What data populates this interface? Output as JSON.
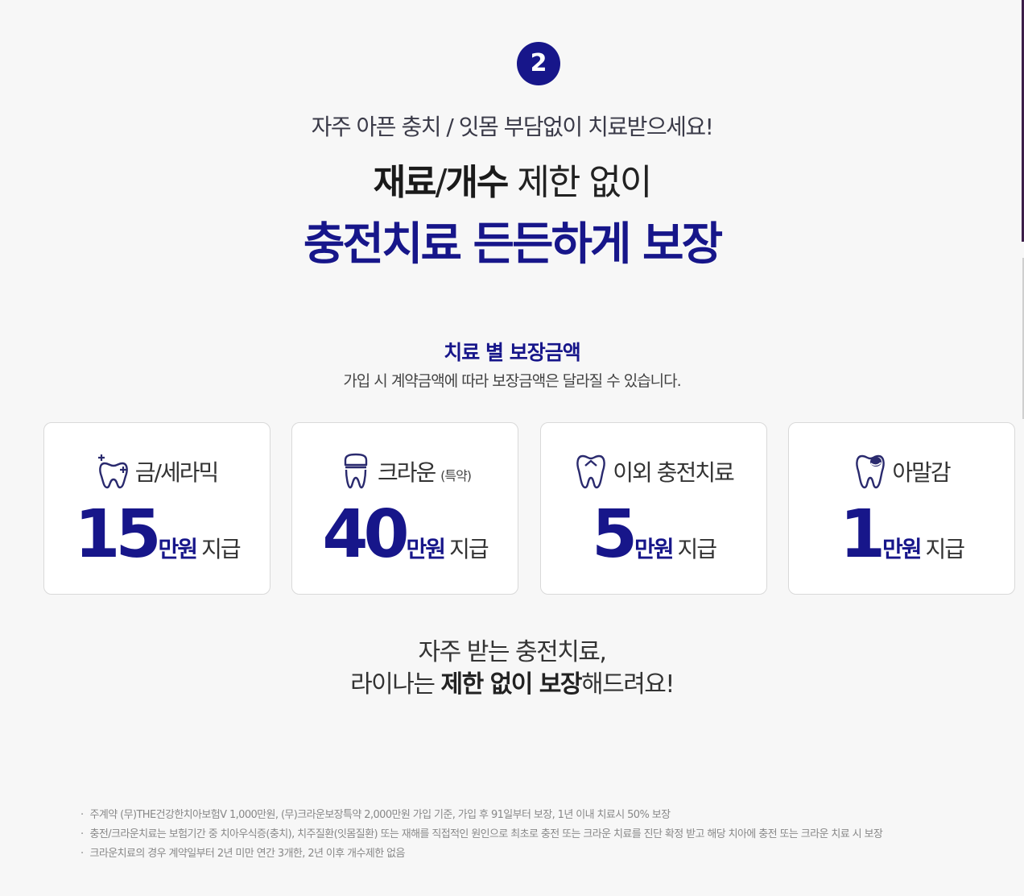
{
  "step": {
    "number": "2"
  },
  "intro": {
    "subtitle": "자주 아픈 충치 / 잇몸 부담없이 치료받으세요!",
    "headline1_bold1": "재료",
    "headline1_sep": "/",
    "headline1_bold2": "개수",
    "headline1_rest": " 제한 없이",
    "headline2": "충전치료 든든하게 보장"
  },
  "section": {
    "title": "치료 별 보장금액",
    "description": "가입 시 계약금액에 따라 보장금액은 달라질 수 있습니다."
  },
  "cards": [
    {
      "title": "금/세라믹",
      "title_note": "",
      "amount": "15",
      "unit": "만원",
      "tail": "지급",
      "icon": "tooth-sparkle-icon"
    },
    {
      "title": "크라운",
      "title_note": "(특약)",
      "amount": "40",
      "unit": "만원",
      "tail": "지급",
      "icon": "tooth-crown-icon"
    },
    {
      "title": "이외 충전치료",
      "title_note": "",
      "amount": "5",
      "unit": "만원",
      "tail": "지급",
      "icon": "tooth-filling-icon"
    },
    {
      "title": "아말감",
      "title_note": "",
      "amount": "1",
      "unit": "만원",
      "tail": "지급",
      "icon": "tooth-amalgam-icon"
    }
  ],
  "closing": {
    "line1": "자주 받는 충전치료,",
    "line2_pre": "라이나는 ",
    "line2_bold": "제한 없이 보장",
    "line2_post": "해드려요!"
  },
  "notes": [
    "주계약 (무)THE건강한치아보험V 1,000만원, (무)크라운보장특약 2,000만원 가입 기준, 가입 후 91일부터 보장, 1년 이내 치료시 50% 보장",
    "충전/크라운치료는 보험기간 중 치아우식증(충치), 치주질환(잇몸질환) 또는 재해를 직접적인 원인으로 최초로 충전 또는 크라운 치료를 진단 확정 받고 해당 치아에 충전 또는 크라운 치료 시 보장",
    "크라운치료의 경우 계약일부터 2년 미만 연간 3개한, 2년 이후 개수제한 없음"
  ],
  "colors": {
    "accent": "#17168a",
    "background": "#f7f7f7"
  }
}
